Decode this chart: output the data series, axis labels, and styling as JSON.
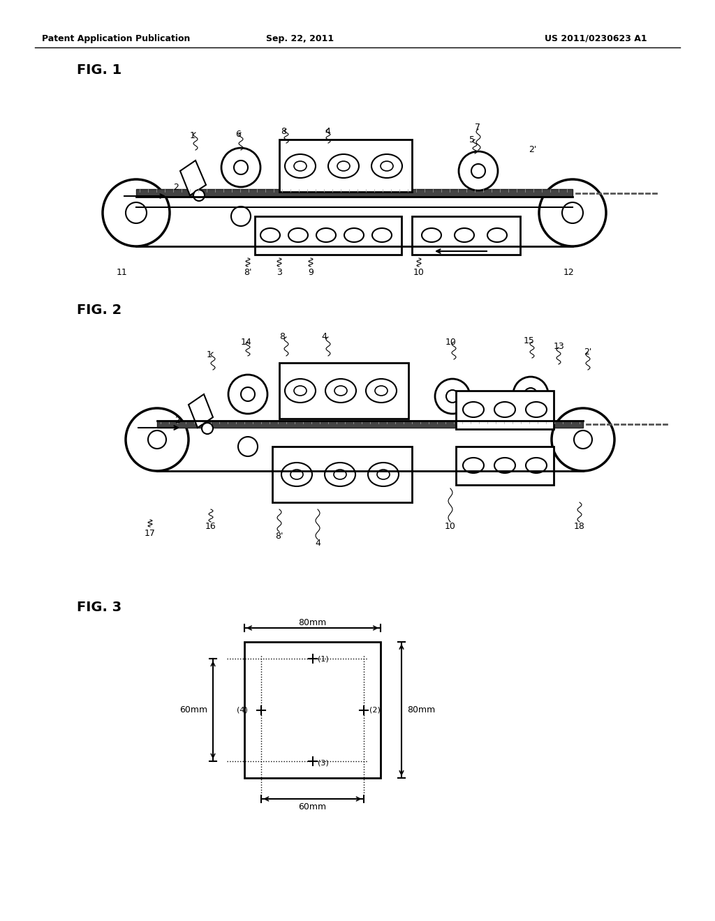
{
  "bg_color": "#ffffff",
  "header_left": "Patent Application Publication",
  "header_center": "Sep. 22, 2011",
  "header_right": "US 2011/0230623 A1",
  "fig1_label": "FIG. 1",
  "fig2_label": "FIG. 2",
  "fig3_label": "FIG. 3"
}
